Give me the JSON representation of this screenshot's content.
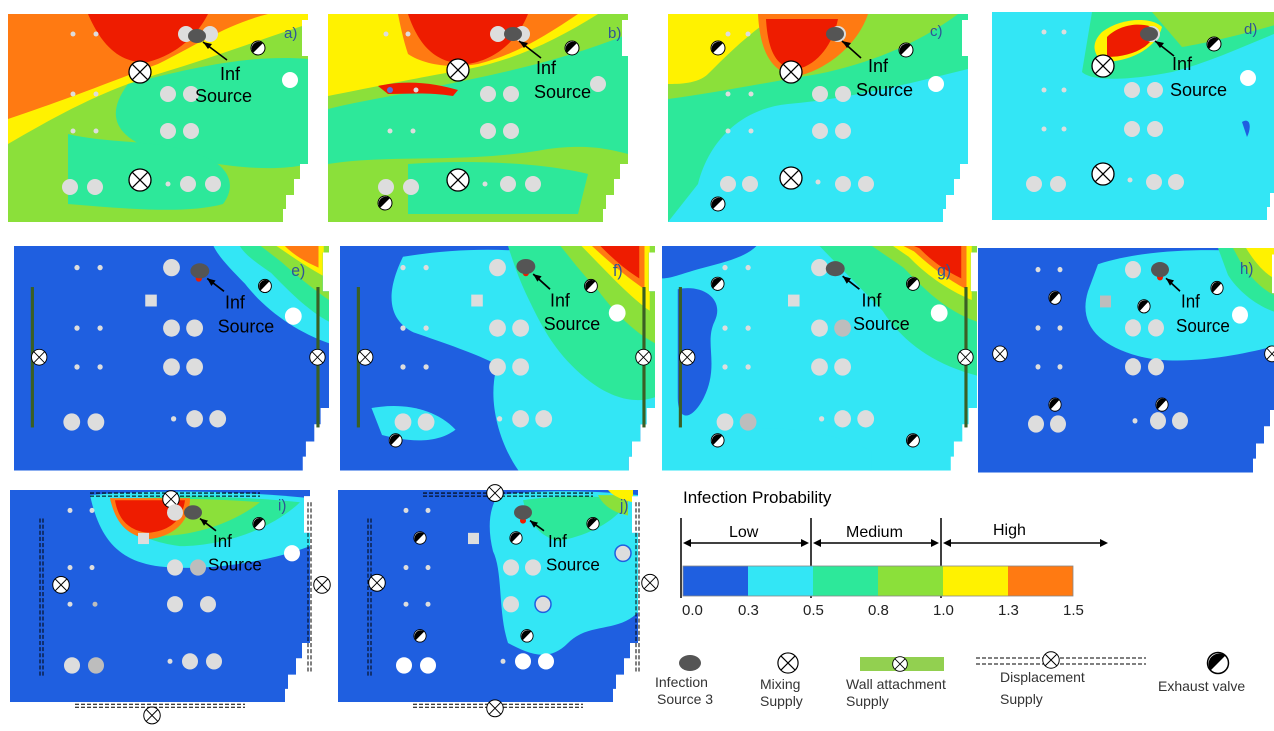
{
  "colors": {
    "dark_blue": "#1F5FE0",
    "light_blue": "#33E6F5",
    "teal_green": "#2DE89A",
    "green": "#8BE03A",
    "yellow": "#FFF200",
    "orange": "#FF7A12",
    "red": "#EE1C00",
    "marker_gray": "#DDDDDD",
    "source_gray": "#555555"
  },
  "panels": [
    {
      "label": "a)",
      "source_label_line1": "Inf",
      "source_label_line2": "Source"
    },
    {
      "label": "b)",
      "source_label_line1": "Inf",
      "source_label_line2": "Source"
    },
    {
      "label": "c)",
      "source_label_line1": "Inf",
      "source_label_line2": "Source"
    },
    {
      "label": "d)",
      "source_label_line1": "Inf",
      "source_label_line2": "Source"
    },
    {
      "label": "e)",
      "source_label_line1": "Inf",
      "source_label_line2": "Source"
    },
    {
      "label": "f)",
      "source_label_line1": "Inf",
      "source_label_line2": "Source"
    },
    {
      "label": "g)",
      "source_label_line1": "Inf",
      "source_label_line2": "Source"
    },
    {
      "label": "h)",
      "source_label_line1": "Inf",
      "source_label_line2": "Source"
    },
    {
      "label": "i)",
      "source_label_line1": "Inf",
      "source_label_line2": "Source"
    },
    {
      "label": "j)",
      "source_label_line1": "Inf",
      "source_label_line2": "Source"
    }
  ],
  "colorbar": {
    "title": "Infection Probability",
    "ranges": [
      "Low",
      "Medium",
      "High"
    ],
    "ticks": [
      "0.0",
      "0.3",
      "0.5",
      "0.8",
      "1.0",
      "1.3",
      "1.5"
    ]
  },
  "legend": {
    "infection_source": [
      "Infection",
      "Source 3"
    ],
    "mixing": [
      "Mixing",
      "Supply"
    ],
    "wall": [
      "Wall attachment",
      "Supply"
    ],
    "displacement": [
      "Displacement",
      "Supply"
    ],
    "exhaust": [
      "Exhaust valve"
    ]
  }
}
